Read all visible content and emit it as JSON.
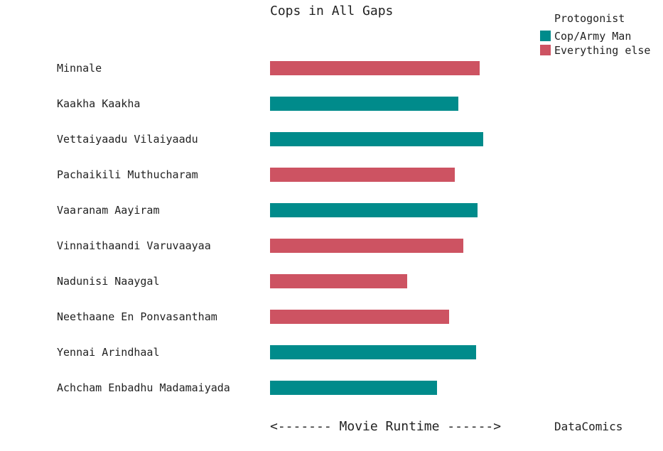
{
  "chart_data": {
    "type": "bar",
    "orientation": "horizontal",
    "title": "Cops in All Gaps",
    "xlabel": "<------- Movie Runtime ------>",
    "ylabel": "",
    "grid": false,
    "legend_position": "top-right",
    "legend": {
      "title": "Protogonist",
      "entries": [
        {
          "name": "Cop/Army Man",
          "color": "#008B8B"
        },
        {
          "name": "Everything else",
          "color": "#CD5362"
        }
      ]
    },
    "categories": [
      "Minnale",
      "Kaakha Kaakha",
      "Vettaiyaadu Vilaiyaadu",
      "Pachaikili Muthucharam",
      "Vaaranam Aayiram",
      "Vinnaithaandi Varuvaayaa",
      "Nadunisi Naaygal",
      "Neethaane En Ponvasantham",
      "Yennai Arindhaal",
      "Achcham Enbadhu Madamaiyada"
    ],
    "values": [
      295,
      265,
      300,
      260,
      292,
      272,
      193,
      252,
      290,
      235
    ],
    "groups": [
      "Everything else",
      "Cop/Army Man",
      "Cop/Army Man",
      "Everything else",
      "Cop/Army Man",
      "Everything else",
      "Everything else",
      "Everything else",
      "Cop/Army Man",
      "Cop/Army Man"
    ]
  },
  "credit": "DataComics"
}
